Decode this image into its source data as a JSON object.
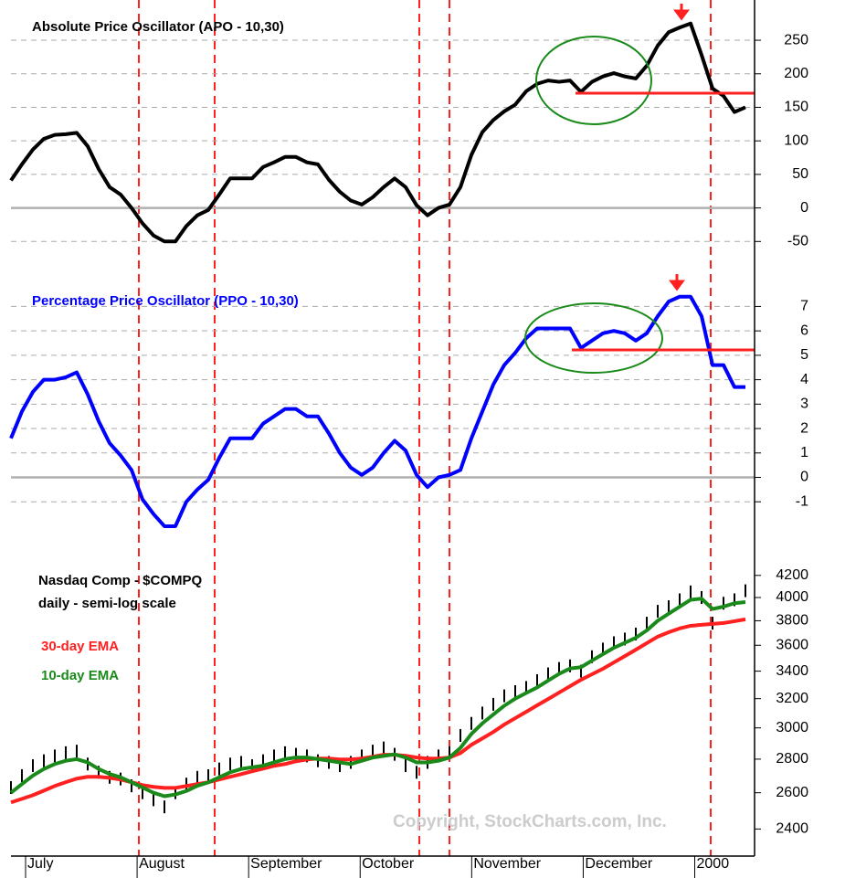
{
  "chart_data": [
    {
      "type": "line",
      "title": "Absolute Price Oscillator (APO - 10,30)",
      "color": "#000000",
      "values": [
        41,
        65,
        87,
        103,
        109,
        110,
        112,
        92,
        58,
        31,
        20,
        0,
        -23,
        -41,
        -50,
        -50,
        -27,
        -11,
        -3,
        20,
        44,
        44,
        44,
        61,
        68,
        76,
        76,
        68,
        65,
        42,
        24,
        11,
        5,
        16,
        31,
        44,
        31,
        4,
        -11,
        0,
        5,
        31,
        79,
        113,
        131,
        144,
        154,
        174,
        185,
        190,
        188,
        190,
        173,
        188,
        196,
        201,
        196,
        193,
        212,
        242,
        262,
        269,
        275,
        228,
        178,
        167,
        143,
        150
      ],
      "ylim": [
        -85,
        310
      ],
      "yticks": [
        -50,
        0,
        50,
        100,
        150,
        200,
        250
      ],
      "grid": true
    },
    {
      "type": "line",
      "title": "Percentage Price Oscillator (PPO - 10,30)",
      "color": "#0000ff",
      "values": [
        1.6,
        2.7,
        3.5,
        4.0,
        4.0,
        4.1,
        4.3,
        3.4,
        2.3,
        1.4,
        0.9,
        0.3,
        -0.9,
        -1.5,
        -2.0,
        -2.0,
        -1.0,
        -0.5,
        -0.1,
        0.8,
        1.6,
        1.6,
        1.6,
        2.2,
        2.5,
        2.8,
        2.8,
        2.5,
        2.5,
        1.8,
        1.0,
        0.4,
        0.1,
        0.4,
        1.0,
        1.5,
        1.1,
        0.1,
        -0.4,
        0.0,
        0.1,
        0.3,
        1.6,
        2.7,
        3.8,
        4.6,
        5.1,
        5.7,
        6.1,
        6.1,
        6.1,
        6.1,
        5.3,
        5.6,
        5.9,
        6.0,
        5.9,
        5.6,
        5.9,
        6.6,
        7.2,
        7.4,
        7.4,
        6.6,
        4.6,
        4.6,
        3.7,
        3.7
      ],
      "ylim": [
        -2.9,
        8.7
      ],
      "yticks": [
        -1,
        0,
        1,
        2,
        3,
        4,
        5,
        6,
        7
      ],
      "grid": true
    },
    {
      "type": "price",
      "title": "Nasdaq Comp - $COMPQ",
      "subtitle": "daily - semi-log scale",
      "log_scale": true,
      "color": "#000000",
      "values": [
        2630,
        2700,
        2760,
        2790,
        2820,
        2840,
        2850,
        2770,
        2720,
        2690,
        2680,
        2640,
        2600,
        2560,
        2520,
        2600,
        2650,
        2690,
        2700,
        2740,
        2770,
        2780,
        2760,
        2790,
        2820,
        2840,
        2830,
        2820,
        2790,
        2780,
        2760,
        2780,
        2820,
        2850,
        2870,
        2830,
        2760,
        2720,
        2780,
        2820,
        2840,
        2950,
        3030,
        3100,
        3160,
        3220,
        3250,
        3280,
        3330,
        3380,
        3420,
        3440,
        3400,
        3510,
        3570,
        3620,
        3650,
        3690,
        3780,
        3880,
        3920,
        3980,
        4050,
        4000,
        3780,
        3950,
        3980,
        4060
      ],
      "series": [
        {
          "name": "30-day EMA",
          "color": "#ff2020",
          "values": [
            2545,
            2565,
            2586,
            2612,
            2639,
            2661,
            2682,
            2693,
            2693,
            2687,
            2677,
            2661,
            2644,
            2634,
            2628,
            2628,
            2639,
            2650,
            2661,
            2677,
            2693,
            2709,
            2726,
            2742,
            2759,
            2770,
            2787,
            2798,
            2804,
            2804,
            2798,
            2798,
            2804,
            2815,
            2827,
            2827,
            2821,
            2810,
            2804,
            2804,
            2810,
            2838,
            2890,
            2931,
            2973,
            3022,
            3065,
            3108,
            3153,
            3197,
            3243,
            3289,
            3336,
            3377,
            3418,
            3466,
            3515,
            3565,
            3617,
            3669,
            3705,
            3736,
            3758,
            3766,
            3774,
            3781,
            3796,
            3812
          ]
        },
        {
          "name": "10-day EMA",
          "color": "#1a8a1a",
          "values": [
            2600,
            2650,
            2700,
            2740,
            2770,
            2790,
            2800,
            2780,
            2740,
            2710,
            2690,
            2660,
            2630,
            2600,
            2580,
            2590,
            2610,
            2640,
            2660,
            2690,
            2720,
            2740,
            2750,
            2760,
            2780,
            2800,
            2810,
            2810,
            2800,
            2790,
            2780,
            2770,
            2790,
            2810,
            2820,
            2830,
            2810,
            2780,
            2780,
            2790,
            2810,
            2870,
            2960,
            3030,
            3090,
            3150,
            3200,
            3240,
            3280,
            3330,
            3380,
            3420,
            3430,
            3480,
            3530,
            3580,
            3620,
            3660,
            3720,
            3800,
            3860,
            3920,
            3980,
            3990,
            3900,
            3920,
            3950,
            3960
          ]
        }
      ],
      "ylim": [
        2270,
        4460
      ],
      "yticks": [
        2400,
        2600,
        2800,
        3000,
        3200,
        3400,
        3600,
        3800,
        4000,
        4200
      ],
      "grid": false,
      "xticklabels": [
        "July",
        "August",
        "September",
        "October",
        "November",
        "December",
        "2000"
      ],
      "annotation": "Copyright, StockCharts.com, Inc."
    }
  ]
}
